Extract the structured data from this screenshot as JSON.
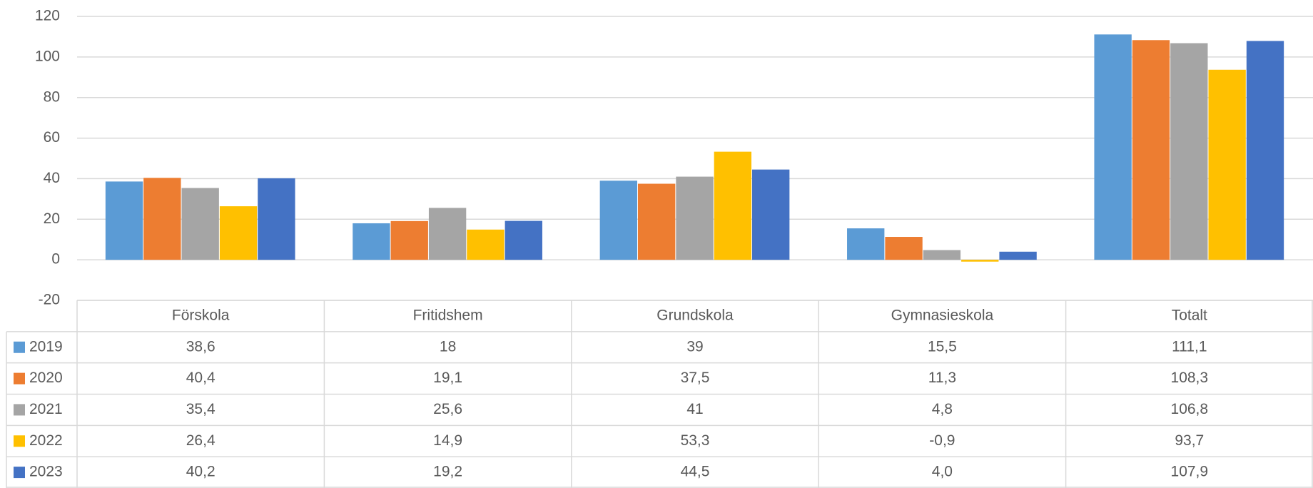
{
  "chart_data": {
    "type": "bar",
    "categories": [
      "Förskola",
      "Fritidshem",
      "Grundskola",
      "Gymnasieskola",
      "Totalt"
    ],
    "series": [
      {
        "name": "2019",
        "color": "#5b9bd5",
        "values": [
          38.6,
          18,
          39,
          15.5,
          111.1
        ],
        "value_labels": [
          "38,6",
          "18",
          "39",
          "15,5",
          "111,1"
        ]
      },
      {
        "name": "2020",
        "color": "#ed7d31",
        "values": [
          40.4,
          19.1,
          37.5,
          11.3,
          108.3
        ],
        "value_labels": [
          "40,4",
          "19,1",
          "37,5",
          "11,3",
          "108,3"
        ]
      },
      {
        "name": "2021",
        "color": "#a5a5a5",
        "values": [
          35.4,
          25.6,
          41,
          4.8,
          106.8
        ],
        "value_labels": [
          "35,4",
          "25,6",
          "41",
          "4,8",
          "106,8"
        ]
      },
      {
        "name": "2022",
        "color": "#ffc000",
        "values": [
          26.4,
          14.9,
          53.3,
          -0.9,
          93.7
        ],
        "value_labels": [
          "26,4",
          "14,9",
          "53,3",
          "-0,9",
          "93,7"
        ]
      },
      {
        "name": "2023",
        "color": "#4472c4",
        "values": [
          40.2,
          19.2,
          44.5,
          4.0,
          107.9
        ],
        "value_labels": [
          "40,2",
          "19,2",
          "44,5",
          "4,0",
          "107,9"
        ]
      }
    ],
    "ylim": [
      -20,
      120
    ],
    "yticks": [
      -20,
      0,
      20,
      40,
      60,
      80,
      100,
      120
    ],
    "grid": true
  }
}
